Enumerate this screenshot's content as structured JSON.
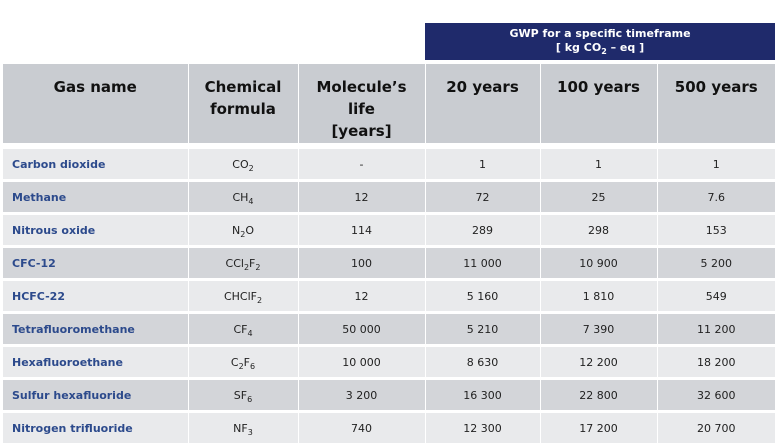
{
  "gwp_banner": {
    "line1": "GWP for a specific timeframe",
    "line2_pre": "[ kg CO",
    "line2_sub": "2",
    "line2_post": " – eq ]"
  },
  "headers": {
    "gas_name": "Gas name",
    "formula_line1": "Chemical",
    "formula_line2": "formula",
    "life_line1": "Molecule’s",
    "life_line2": "life",
    "life_line3": "[years]",
    "y20": "20 years",
    "y100": "100 years",
    "y500": "500 years"
  },
  "rows": [
    {
      "name": "Carbon dioxide",
      "f": [
        {
          "t": "CO"
        },
        {
          "s": "2"
        }
      ],
      "life": "-",
      "y20": "1",
      "y100": "1",
      "y500": "1"
    },
    {
      "name": "Methane",
      "f": [
        {
          "t": "CH"
        },
        {
          "s": "4"
        }
      ],
      "life": "12",
      "y20": "72",
      "y100": "25",
      "y500": "7.6"
    },
    {
      "name": "Nitrous oxide",
      "f": [
        {
          "t": "N"
        },
        {
          "s": "2"
        },
        {
          "t": "O"
        }
      ],
      "life": "114",
      "y20": "289",
      "y100": "298",
      "y500": "153"
    },
    {
      "name": "CFC-12",
      "f": [
        {
          "t": "CCl"
        },
        {
          "s": "2"
        },
        {
          "t": "F"
        },
        {
          "s": "2"
        }
      ],
      "life": "100",
      "y20": "11 000",
      "y100": "10 900",
      "y500": "5 200"
    },
    {
      "name": "HCFC-22",
      "f": [
        {
          "t": "CHClF"
        },
        {
          "s": "2"
        }
      ],
      "life": "12",
      "y20": "5 160",
      "y100": "1 810",
      "y500": "549"
    },
    {
      "name": "Tetrafluoromethane",
      "f": [
        {
          "t": "CF"
        },
        {
          "s": "4"
        }
      ],
      "life": "50 000",
      "y20": "5 210",
      "y100": "7 390",
      "y500": "11 200"
    },
    {
      "name": "Hexafluoroethane",
      "f": [
        {
          "t": "C"
        },
        {
          "s": "2"
        },
        {
          "t": "F"
        },
        {
          "s": "6"
        }
      ],
      "life": "10 000",
      "y20": "8 630",
      "y100": "12 200",
      "y500": "18 200"
    },
    {
      "name": "Sulfur hexafluoride",
      "f": [
        {
          "t": "SF"
        },
        {
          "s": "6"
        }
      ],
      "life": "3 200",
      "y20": "16 300",
      "y100": "22 800",
      "y500": "32 600"
    },
    {
      "name": "Nitrogen trifluoride",
      "f": [
        {
          "t": "NF"
        },
        {
          "s": "3"
        }
      ],
      "life": "740",
      "y20": "12 300",
      "y100": "17 200",
      "y500": "20 700"
    }
  ]
}
